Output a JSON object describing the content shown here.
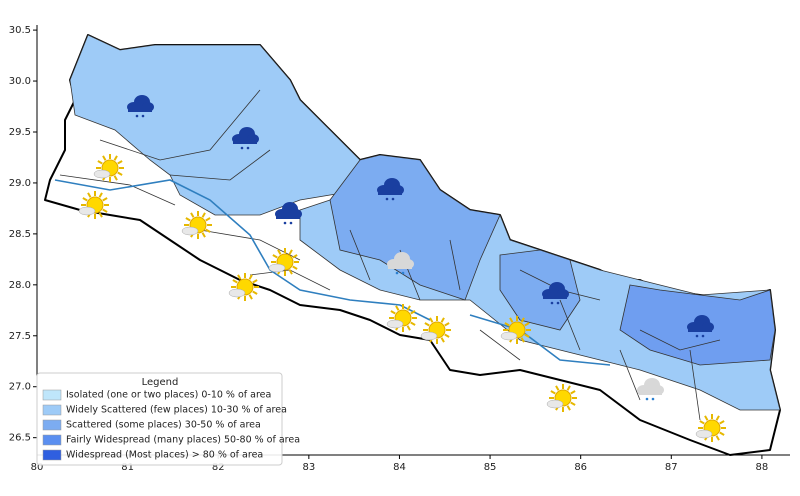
{
  "map": {
    "xlim": [
      80,
      88.31
    ],
    "ylim": [
      26.33,
      30.55
    ],
    "xticks": [
      80,
      81,
      82,
      83,
      84,
      85,
      86,
      87,
      88
    ],
    "yticks": [
      {
        "value": 26.5,
        "label": "26.5"
      },
      {
        "value": 27.0,
        "label": "27.0"
      },
      {
        "value": 27.5,
        "label": "27.5"
      },
      {
        "value": 28.0,
        "label": "28.0"
      },
      {
        "value": 28.5,
        "label": "28.5"
      },
      {
        "value": 29.0,
        "label": "29.0"
      },
      {
        "value": 29.5,
        "label": "29.5"
      },
      {
        "value": 30.0,
        "label": "30.0"
      },
      {
        "value": 30.5,
        "label": "30.5"
      }
    ],
    "legend": {
      "title": "Legend",
      "items": [
        {
          "label": "Isolated (one or two places)  0-10 % of area",
          "color": "#bfe6fb"
        },
        {
          "label": "Widely Scattered (few places)  10-30 % of area",
          "color": "#9ecbf7"
        },
        {
          "label": "Scattered (some places)  30-50 % of area",
          "color": "#7cacf1"
        },
        {
          "label": "Fairly Widespread (many places)  50-80 % of area",
          "color": "#5b8ff0"
        },
        {
          "label": "Widespread (Most places) > 80 % of area",
          "color": "#2f5fe0"
        }
      ]
    }
  }
}
